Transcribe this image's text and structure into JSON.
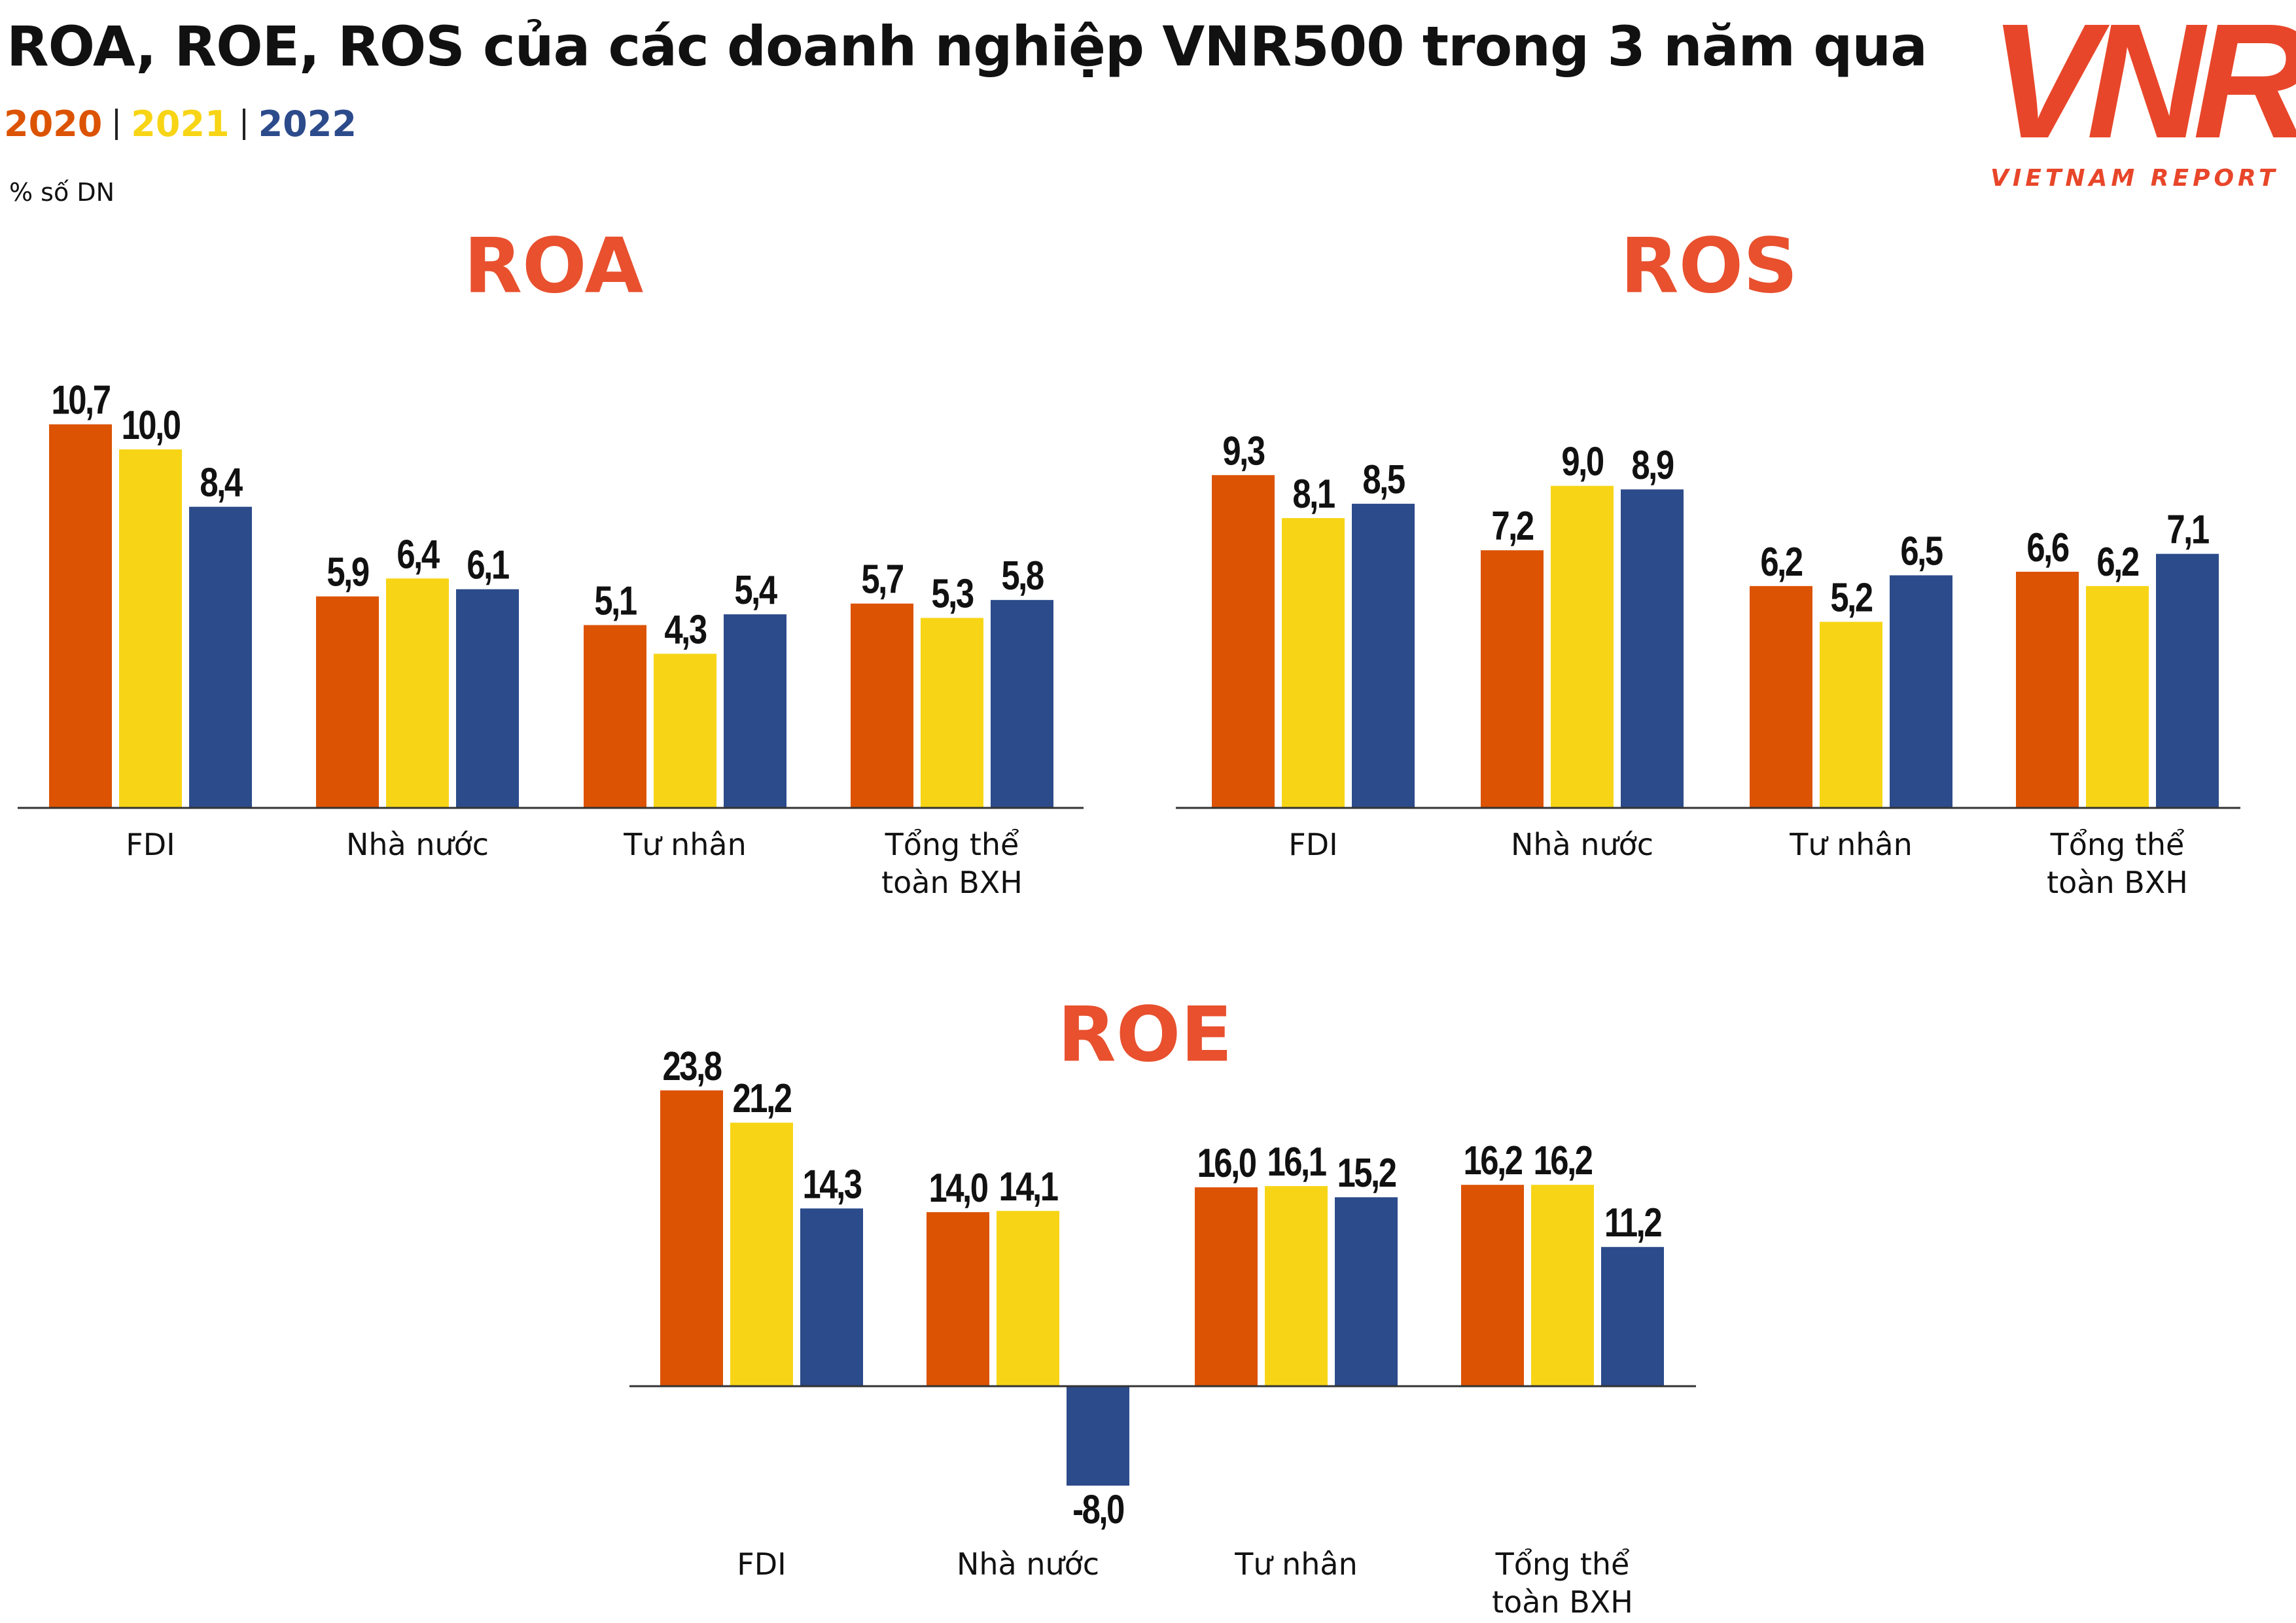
{
  "header": {
    "title": "ROA, ROE, ROS của các doanh nghiệp VNR500 trong 3 năm qua",
    "unit": "% số DN"
  },
  "logo": {
    "mark": "VNR",
    "tagline": "VIETNAM REPORT"
  },
  "chart_data": [
    {
      "type": "bar",
      "title": "ROA",
      "categories": [
        "FDI",
        "Nhà nước",
        "Tư nhân",
        "Tổng thể toàn BXH"
      ],
      "series": [
        {
          "name": "2020",
          "color": "#dc5304",
          "values": [
            10.7,
            5.9,
            5.1,
            5.7
          ],
          "value_labels": [
            "10,7",
            "5,9",
            "5,1",
            "5,7"
          ]
        },
        {
          "name": "2021",
          "color": "#f7d516",
          "values": [
            10.0,
            6.4,
            4.3,
            5.3
          ],
          "value_labels": [
            "10,0",
            "6,4",
            "4,3",
            "5,3"
          ]
        },
        {
          "name": "2022",
          "color": "#2c4b8b",
          "values": [
            8.4,
            6.1,
            5.4,
            5.8
          ],
          "value_labels": [
            "8,4",
            "6,1",
            "5,4",
            "5,8"
          ]
        }
      ]
    },
    {
      "type": "bar",
      "title": "ROS",
      "categories": [
        "FDI",
        "Nhà nước",
        "Tư nhân",
        "Tổng thể toàn BXH"
      ],
      "series": [
        {
          "color": "#dc5304",
          "values": [
            9.3,
            7.2,
            6.2,
            6.6
          ],
          "value_labels": [
            "9,3",
            "7,2",
            "6,2",
            "6,6"
          ]
        },
        {
          "color": "#f7d516",
          "values": [
            8.1,
            9.0,
            5.2,
            6.2
          ],
          "value_labels": [
            "8,1",
            "9,0",
            "5,2",
            "6,2"
          ]
        },
        {
          "color": "#2c4b8b",
          "values": [
            8.5,
            8.9,
            6.5,
            7.1
          ],
          "value_labels": [
            "8,5",
            "8,9",
            "6,5",
            "7,1"
          ]
        }
      ]
    },
    {
      "type": "bar",
      "title": "ROE",
      "categories": [
        "FDI",
        "Nhà nước",
        "Tư nhân",
        "Tổng thể toàn BXH"
      ],
      "series": [
        {
          "color": "#dc5304",
          "values": [
            23.8,
            14.0,
            16.0,
            16.2
          ],
          "value_labels": [
            "23,8",
            "14,0",
            "16,0",
            "16,2"
          ]
        },
        {
          "color": "#f7d516",
          "values": [
            21.2,
            14.1,
            16.1,
            16.2
          ],
          "value_labels": [
            "21,2",
            "14,1",
            "16,1",
            "16,2"
          ]
        },
        {
          "color": "#2c4b8b",
          "values": [
            14.3,
            -8.0,
            15.2,
            11.2
          ],
          "value_labels": [
            "14,3",
            "-8,0",
            "15,2",
            "11,2"
          ]
        }
      ]
    }
  ]
}
